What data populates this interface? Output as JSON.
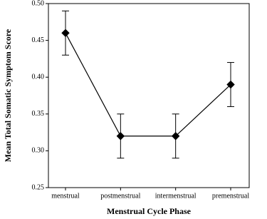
{
  "chart_data": {
    "type": "line",
    "categories": [
      "menstrual",
      "postmenstrual",
      "intermenstrual",
      "premenstrual"
    ],
    "values": [
      0.46,
      0.32,
      0.32,
      0.39
    ],
    "errors": [
      0.03,
      0.03,
      0.03,
      0.03
    ],
    "color": "#000000",
    "x_label": "Menstrual Cycle Phase",
    "y_label": "Mean Total Somatic Symptom Score",
    "ylim": [
      0.25,
      0.5
    ],
    "yticks": [
      0.25,
      {
        "value": 0.3,
        "label": "0.30"
      },
      0.35,
      {
        "value": 0.4,
        "label": "0.40"
      },
      0.45,
      {
        "value": 0.5,
        "label": "0.50"
      }
    ],
    "grid": false
  }
}
